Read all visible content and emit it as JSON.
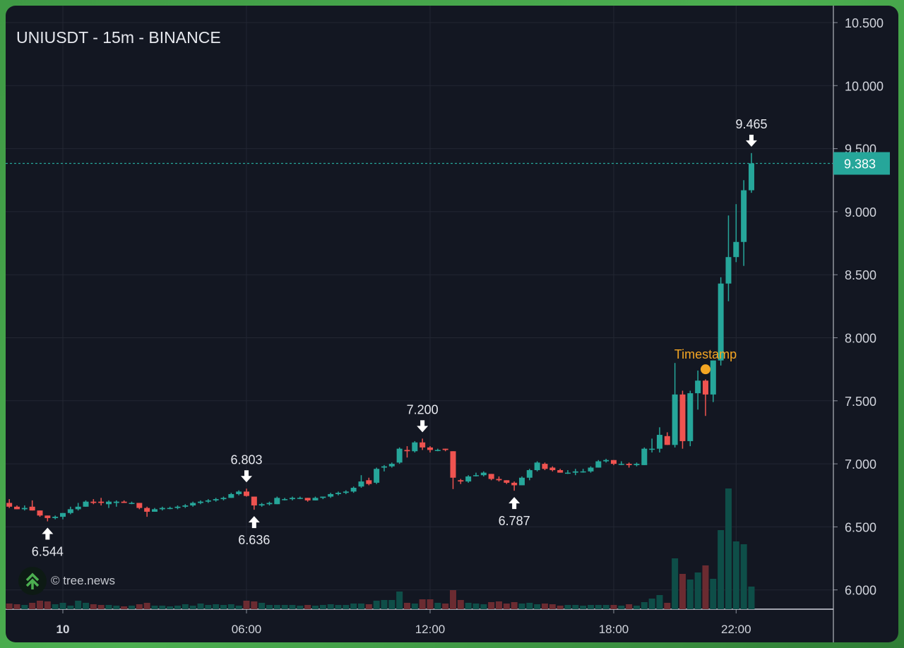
{
  "header": {
    "title": "UNIUSDT - 15m - BINANCE"
  },
  "watermark": {
    "text": "© tree.news"
  },
  "colors": {
    "up": "#26a69a",
    "down": "#ef5350",
    "up_volume": "#0e4e48",
    "down_volume": "#6b2b31",
    "marker": "#f5a623",
    "background": "#131722",
    "grid": "#232733",
    "text": "#d1d4dc"
  },
  "chart_data": {
    "type": "candlestick",
    "title": "UNIUSDT - 15m - BINANCE",
    "interval_minutes": 15,
    "first_bar_offset_from_day_10": -7,
    "ylim": [
      5.87,
      10.55
    ],
    "y_ticks": [
      "6.000",
      "6.500",
      "7.000",
      "7.500",
      "8.000",
      "8.500",
      "9.000",
      "9.500",
      "10.000",
      "10.500"
    ],
    "x_ticks": [
      {
        "label": "10",
        "bar": 0,
        "bold": true
      },
      {
        "label": "06:00",
        "bar": 24
      },
      {
        "label": "12:00",
        "bar": 48
      },
      {
        "label": "18:00",
        "bar": 72
      },
      {
        "label": "22:00",
        "bar": 88
      }
    ],
    "last_price": {
      "value": 9.383,
      "label": "9.383"
    },
    "annotations": [
      {
        "label": "6.544",
        "bar": -2,
        "price": 6.544,
        "position": "below"
      },
      {
        "label": "6.803",
        "bar": 24,
        "price": 6.803,
        "position": "above"
      },
      {
        "label": "6.636",
        "bar": 25,
        "price": 6.636,
        "position": "below"
      },
      {
        "label": "7.200",
        "bar": 47,
        "price": 7.2,
        "position": "above"
      },
      {
        "label": "6.787",
        "bar": 59,
        "price": 6.787,
        "position": "below"
      },
      {
        "label": "9.465",
        "bar": 90,
        "price": 9.465,
        "position": "above"
      }
    ],
    "event_marker": {
      "label": "Timestamp",
      "bar": 84,
      "price": 7.75
    },
    "ohlcv_columns": [
      "open",
      "high",
      "low",
      "close",
      "volume"
    ],
    "ohlcv": [
      [
        6.69,
        6.72,
        6.65,
        6.66,
        8
      ],
      [
        6.66,
        6.67,
        6.64,
        6.64,
        7
      ],
      [
        6.64,
        6.67,
        6.63,
        6.65,
        6
      ],
      [
        6.66,
        6.71,
        6.63,
        6.63,
        9
      ],
      [
        6.63,
        6.63,
        6.58,
        6.59,
        12
      ],
      [
        6.59,
        6.59,
        6.544,
        6.57,
        11
      ],
      [
        6.57,
        6.59,
        6.56,
        6.58,
        7
      ],
      [
        6.58,
        6.61,
        6.56,
        6.61,
        9
      ],
      [
        6.61,
        6.66,
        6.6,
        6.64,
        5
      ],
      [
        6.64,
        6.69,
        6.63,
        6.66,
        12
      ],
      [
        6.66,
        6.71,
        6.66,
        6.7,
        9
      ],
      [
        6.7,
        6.72,
        6.68,
        6.69,
        7
      ],
      [
        6.7,
        6.73,
        6.67,
        6.69,
        6
      ],
      [
        6.68,
        6.71,
        6.65,
        6.7,
        6
      ],
      [
        6.69,
        6.71,
        6.66,
        6.7,
        5
      ],
      [
        6.7,
        6.71,
        6.69,
        6.69,
        4
      ],
      [
        6.69,
        6.7,
        6.68,
        6.69,
        5
      ],
      [
        6.69,
        6.69,
        6.64,
        6.65,
        7
      ],
      [
        6.65,
        6.66,
        6.58,
        6.62,
        9
      ],
      [
        6.62,
        6.65,
        6.62,
        6.64,
        5
      ],
      [
        6.64,
        6.66,
        6.63,
        6.65,
        5
      ],
      [
        6.65,
        6.66,
        6.64,
        6.65,
        4
      ],
      [
        6.65,
        6.67,
        6.64,
        6.66,
        5
      ],
      [
        6.66,
        6.68,
        6.65,
        6.67,
        7
      ],
      [
        6.67,
        6.7,
        6.66,
        6.69,
        5
      ],
      [
        6.69,
        6.71,
        6.68,
        6.7,
        8
      ],
      [
        6.7,
        6.72,
        6.69,
        6.71,
        6
      ],
      [
        6.71,
        6.73,
        6.7,
        6.72,
        7
      ],
      [
        6.72,
        6.74,
        6.71,
        6.73,
        6
      ],
      [
        6.73,
        6.77,
        6.73,
        6.76,
        7
      ],
      [
        6.76,
        6.79,
        6.75,
        6.78,
        5
      ],
      [
        6.78,
        6.803,
        6.74,
        6.745,
        12
      ],
      [
        6.74,
        6.74,
        6.636,
        6.67,
        11
      ],
      [
        6.67,
        6.69,
        6.66,
        6.68,
        9
      ],
      [
        6.68,
        6.7,
        6.67,
        6.69,
        6
      ],
      [
        6.68,
        6.74,
        6.68,
        6.73,
        6
      ],
      [
        6.72,
        6.73,
        6.71,
        6.72,
        6
      ],
      [
        6.72,
        6.74,
        6.71,
        6.73,
        6
      ],
      [
        6.73,
        6.74,
        6.72,
        6.73,
        5
      ],
      [
        6.73,
        6.73,
        6.7,
        6.71,
        6
      ],
      [
        6.71,
        6.74,
        6.71,
        6.73,
        5
      ],
      [
        6.73,
        6.74,
        6.72,
        6.74,
        6
      ],
      [
        6.74,
        6.77,
        6.73,
        6.76,
        7
      ],
      [
        6.76,
        6.78,
        6.75,
        6.77,
        6
      ],
      [
        6.77,
        6.79,
        6.76,
        6.78,
        6
      ],
      [
        6.78,
        6.82,
        6.77,
        6.81,
        8
      ],
      [
        6.82,
        6.91,
        6.81,
        6.86,
        8
      ],
      [
        6.87,
        6.89,
        6.83,
        6.84,
        7
      ],
      [
        6.85,
        6.97,
        6.84,
        6.96,
        12
      ],
      [
        6.97,
        6.99,
        6.94,
        6.98,
        13
      ],
      [
        6.98,
        7.01,
        6.97,
        7.0,
        13
      ],
      [
        7.01,
        7.13,
        7.0,
        7.12,
        25
      ],
      [
        7.11,
        7.14,
        7.05,
        7.1,
        9
      ],
      [
        7.1,
        7.18,
        7.09,
        7.17,
        8
      ],
      [
        7.17,
        7.2,
        7.11,
        7.13,
        14
      ],
      [
        7.13,
        7.14,
        7.09,
        7.11,
        14
      ],
      [
        7.11,
        7.12,
        7.1,
        7.11,
        9
      ],
      [
        7.12,
        7.12,
        7.1,
        7.11,
        8
      ],
      [
        7.1,
        7.1,
        6.8,
        6.89,
        27
      ],
      [
        6.87,
        6.88,
        6.84,
        6.86,
        13
      ],
      [
        6.86,
        6.91,
        6.85,
        6.9,
        9
      ],
      [
        6.91,
        6.93,
        6.9,
        6.91,
        8
      ],
      [
        6.91,
        6.94,
        6.9,
        6.93,
        7
      ],
      [
        6.92,
        6.92,
        6.87,
        6.88,
        10
      ],
      [
        6.88,
        6.9,
        6.86,
        6.87,
        11
      ],
      [
        6.87,
        6.87,
        6.84,
        6.85,
        8
      ],
      [
        6.85,
        6.86,
        6.787,
        6.83,
        10
      ],
      [
        6.83,
        6.9,
        6.83,
        6.89,
        8
      ],
      [
        6.89,
        6.96,
        6.87,
        6.95,
        9
      ],
      [
        6.95,
        7.02,
        6.94,
        7.01,
        7
      ],
      [
        7.0,
        7.01,
        6.95,
        6.96,
        8
      ],
      [
        6.97,
        6.98,
        6.94,
        6.95,
        7
      ],
      [
        6.95,
        6.96,
        6.93,
        6.93,
        5
      ],
      [
        6.93,
        6.95,
        6.92,
        6.93,
        6
      ],
      [
        6.93,
        6.96,
        6.91,
        6.94,
        6
      ],
      [
        6.94,
        6.96,
        6.93,
        6.94,
        5
      ],
      [
        6.94,
        6.98,
        6.93,
        6.97,
        6
      ],
      [
        6.97,
        7.03,
        6.97,
        7.02,
        6
      ],
      [
        7.02,
        7.04,
        7.01,
        7.03,
        6
      ],
      [
        7.03,
        7.03,
        6.99,
        7.0,
        6
      ],
      [
        7.0,
        7.02,
        6.99,
        7.0,
        5
      ],
      [
        7.0,
        7.01,
        6.97,
        6.99,
        7
      ],
      [
        6.99,
        7.01,
        6.98,
        7.0,
        5
      ],
      [
        6.99,
        7.13,
        6.99,
        7.12,
        10
      ],
      [
        7.12,
        7.2,
        7.09,
        7.12,
        15
      ],
      [
        7.12,
        7.29,
        7.09,
        7.23,
        20
      ],
      [
        7.22,
        7.25,
        7.15,
        7.15,
        9
      ],
      [
        7.15,
        7.8,
        7.13,
        7.55,
        72
      ],
      [
        7.55,
        7.58,
        7.12,
        7.18,
        50
      ],
      [
        7.18,
        7.58,
        7.14,
        7.56,
        42
      ],
      [
        7.56,
        7.74,
        7.43,
        7.66,
        52
      ],
      [
        7.66,
        7.67,
        7.38,
        7.55,
        62
      ],
      [
        7.55,
        7.82,
        7.49,
        7.82,
        43
      ],
      [
        7.82,
        8.48,
        7.78,
        8.43,
        112
      ],
      [
        8.43,
        8.97,
        8.29,
        8.64,
        171
      ],
      [
        8.64,
        9.06,
        8.6,
        8.76,
        96
      ],
      [
        8.76,
        9.25,
        8.57,
        9.17,
        92
      ],
      [
        9.17,
        9.465,
        9.15,
        9.383,
        32
      ]
    ]
  }
}
